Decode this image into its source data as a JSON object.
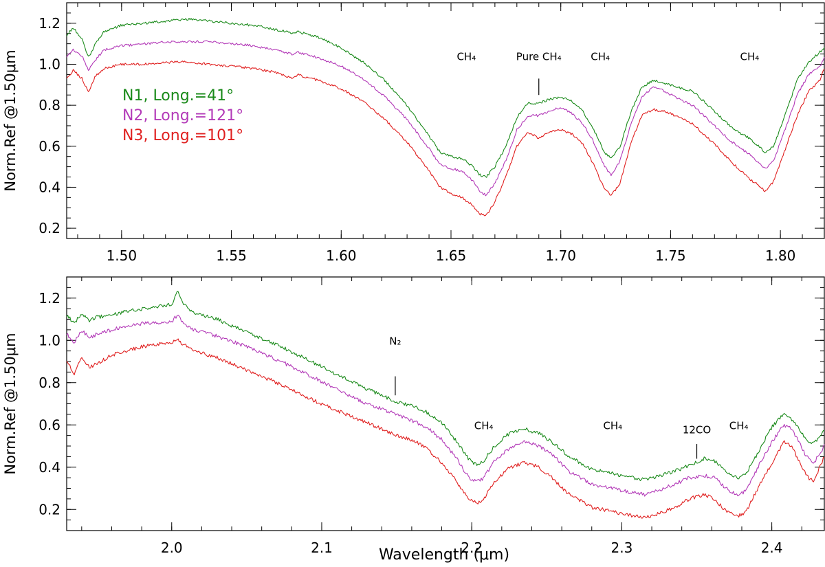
{
  "chart_data": [
    {
      "type": "line",
      "ylabel": "Norm.Ref @1.50μm",
      "xlim": [
        1.475,
        1.82
      ],
      "ylim": [
        0.15,
        1.3
      ],
      "xticks": [
        1.5,
        1.55,
        1.6,
        1.65,
        1.7,
        1.75,
        1.8
      ],
      "xtick_labels": [
        "1.50",
        "1.55",
        "1.60",
        "1.65",
        "1.70",
        "1.75",
        "1.80"
      ],
      "yticks": [
        0.2,
        0.4,
        0.6,
        0.8,
        1.0,
        1.2
      ],
      "ytick_labels": [
        "0.2",
        "0.4",
        "0.6",
        "0.8",
        "1.0",
        "1.2"
      ],
      "legend": [
        {
          "label": "N1, Long.=41°",
          "color": "#1a8a1a"
        },
        {
          "label": "N2, Long.=121°",
          "color": "#b33ab8"
        },
        {
          "label": "N3, Long.=101°",
          "color": "#e02020"
        }
      ],
      "annotations": [
        {
          "x": 1.657,
          "y": 1.02,
          "text": "CH₄"
        },
        {
          "x": 1.69,
          "y": 1.02,
          "text": "Pure CH₄",
          "marker_y": [
            0.85,
            0.93
          ]
        },
        {
          "x": 1.718,
          "y": 1.02,
          "text": "CH₄"
        },
        {
          "x": 1.786,
          "y": 1.02,
          "text": "CH₄"
        }
      ],
      "series": [
        {
          "name": "N1, Long.=41°",
          "color": "#1a8a1a",
          "x": [
            1.475,
            1.478,
            1.482,
            1.485,
            1.488,
            1.492,
            1.5,
            1.51,
            1.52,
            1.53,
            1.54,
            1.55,
            1.56,
            1.57,
            1.578,
            1.58,
            1.59,
            1.6,
            1.61,
            1.62,
            1.63,
            1.64,
            1.645,
            1.65,
            1.655,
            1.66,
            1.663,
            1.666,
            1.67,
            1.675,
            1.68,
            1.685,
            1.69,
            1.695,
            1.7,
            1.705,
            1.71,
            1.715,
            1.72,
            1.723,
            1.727,
            1.732,
            1.737,
            1.742,
            1.747,
            1.752,
            1.76,
            1.77,
            1.778,
            1.782,
            1.786,
            1.79,
            1.793,
            1.797,
            1.802,
            1.808,
            1.813,
            1.818,
            1.82
          ],
          "y": [
            1.14,
            1.18,
            1.12,
            1.03,
            1.1,
            1.16,
            1.19,
            1.2,
            1.21,
            1.22,
            1.21,
            1.2,
            1.19,
            1.17,
            1.15,
            1.16,
            1.13,
            1.08,
            1.01,
            0.92,
            0.8,
            0.65,
            0.57,
            0.55,
            0.54,
            0.5,
            0.46,
            0.45,
            0.5,
            0.6,
            0.74,
            0.81,
            0.81,
            0.83,
            0.84,
            0.82,
            0.77,
            0.68,
            0.57,
            0.54,
            0.6,
            0.77,
            0.89,
            0.92,
            0.91,
            0.89,
            0.87,
            0.77,
            0.69,
            0.66,
            0.64,
            0.6,
            0.57,
            0.6,
            0.75,
            0.93,
            1.01,
            1.06,
            1.08
          ]
        },
        {
          "name": "N2, Long.=121°",
          "color": "#b33ab8",
          "x": [
            1.475,
            1.478,
            1.482,
            1.485,
            1.488,
            1.492,
            1.5,
            1.51,
            1.52,
            1.53,
            1.54,
            1.55,
            1.56,
            1.57,
            1.578,
            1.58,
            1.59,
            1.6,
            1.61,
            1.62,
            1.63,
            1.64,
            1.645,
            1.65,
            1.655,
            1.66,
            1.663,
            1.666,
            1.67,
            1.675,
            1.68,
            1.685,
            1.69,
            1.695,
            1.7,
            1.705,
            1.71,
            1.715,
            1.72,
            1.723,
            1.727,
            1.732,
            1.737,
            1.742,
            1.747,
            1.752,
            1.76,
            1.77,
            1.778,
            1.782,
            1.786,
            1.79,
            1.793,
            1.797,
            1.802,
            1.808,
            1.813,
            1.818,
            1.82
          ],
          "y": [
            1.04,
            1.07,
            1.04,
            0.97,
            1.02,
            1.07,
            1.09,
            1.1,
            1.11,
            1.11,
            1.11,
            1.1,
            1.09,
            1.07,
            1.05,
            1.06,
            1.03,
            0.99,
            0.93,
            0.84,
            0.73,
            0.59,
            0.51,
            0.49,
            0.48,
            0.43,
            0.38,
            0.36,
            0.42,
            0.53,
            0.68,
            0.75,
            0.75,
            0.77,
            0.79,
            0.76,
            0.71,
            0.62,
            0.5,
            0.46,
            0.53,
            0.71,
            0.84,
            0.89,
            0.87,
            0.84,
            0.8,
            0.7,
            0.62,
            0.59,
            0.56,
            0.52,
            0.49,
            0.53,
            0.68,
            0.86,
            0.95,
            0.99,
            1.03
          ]
        },
        {
          "name": "N3, Long.=101°",
          "color": "#e02020",
          "x": [
            1.475,
            1.478,
            1.482,
            1.485,
            1.488,
            1.492,
            1.5,
            1.51,
            1.52,
            1.53,
            1.54,
            1.55,
            1.56,
            1.57,
            1.578,
            1.58,
            1.59,
            1.6,
            1.61,
            1.62,
            1.63,
            1.64,
            1.645,
            1.65,
            1.655,
            1.66,
            1.663,
            1.666,
            1.67,
            1.675,
            1.68,
            1.685,
            1.69,
            1.695,
            1.7,
            1.705,
            1.71,
            1.715,
            1.72,
            1.723,
            1.727,
            1.732,
            1.737,
            1.742,
            1.747,
            1.752,
            1.76,
            1.77,
            1.778,
            1.782,
            1.786,
            1.79,
            1.793,
            1.797,
            1.802,
            1.808,
            1.813,
            1.818,
            1.82
          ],
          "y": [
            0.93,
            0.97,
            0.93,
            0.86,
            0.94,
            0.98,
            1.0,
            1.0,
            1.01,
            1.01,
            1.0,
            0.99,
            0.98,
            0.96,
            0.93,
            0.95,
            0.92,
            0.88,
            0.82,
            0.73,
            0.62,
            0.48,
            0.4,
            0.37,
            0.35,
            0.31,
            0.27,
            0.26,
            0.33,
            0.45,
            0.6,
            0.67,
            0.64,
            0.67,
            0.68,
            0.66,
            0.61,
            0.51,
            0.39,
            0.36,
            0.42,
            0.62,
            0.75,
            0.78,
            0.77,
            0.75,
            0.71,
            0.61,
            0.52,
            0.48,
            0.44,
            0.41,
            0.38,
            0.43,
            0.58,
            0.76,
            0.87,
            0.92,
            0.98
          ]
        }
      ]
    },
    {
      "type": "line",
      "xlabel": "Wavelength (μm)",
      "ylabel": "Norm.Ref @1.50μm",
      "xlim": [
        1.93,
        2.435
      ],
      "ylim": [
        0.1,
        1.3
      ],
      "xticks": [
        2.0,
        2.1,
        2.2,
        2.3,
        2.4
      ],
      "xtick_labels": [
        "2.0",
        "2.1",
        "2.2",
        "2.3",
        "2.4"
      ],
      "yticks": [
        0.2,
        0.4,
        0.6,
        0.8,
        1.0,
        1.2
      ],
      "ytick_labels": [
        "0.2",
        "0.4",
        "0.6",
        "0.8",
        "1.0",
        "1.2"
      ],
      "annotations": [
        {
          "x": 2.149,
          "y": 0.98,
          "text": "N₂",
          "marker_y": [
            0.74,
            0.83
          ]
        },
        {
          "x": 2.208,
          "y": 0.58,
          "text": "CH₄"
        },
        {
          "x": 2.294,
          "y": 0.58,
          "text": "CH₄"
        },
        {
          "x": 2.35,
          "y": 0.56,
          "text": "12CO",
          "marker_y": [
            0.44,
            0.51
          ]
        },
        {
          "x": 2.378,
          "y": 0.58,
          "text": "CH₄"
        }
      ],
      "series": [
        {
          "name": "N1, Long.=41°",
          "color": "#1a8a1a",
          "x": [
            1.93,
            1.935,
            1.94,
            1.945,
            1.95,
            1.96,
            1.97,
            1.98,
            1.99,
            2.0,
            2.004,
            2.008,
            2.015,
            2.03,
            2.05,
            2.07,
            2.09,
            2.11,
            2.13,
            2.15,
            2.16,
            2.17,
            2.18,
            2.19,
            2.198,
            2.203,
            2.208,
            2.215,
            2.225,
            2.235,
            2.245,
            2.255,
            2.265,
            2.28,
            2.3,
            2.315,
            2.325,
            2.335,
            2.345,
            2.355,
            2.362,
            2.368,
            2.373,
            2.378,
            2.383,
            2.39,
            2.4,
            2.408,
            2.413,
            2.418,
            2.423,
            2.428,
            2.435
          ],
          "y": [
            1.12,
            1.08,
            1.13,
            1.09,
            1.11,
            1.12,
            1.14,
            1.15,
            1.16,
            1.17,
            1.23,
            1.17,
            1.13,
            1.1,
            1.04,
            0.98,
            0.91,
            0.84,
            0.77,
            0.71,
            0.69,
            0.66,
            0.61,
            0.52,
            0.44,
            0.41,
            0.43,
            0.5,
            0.56,
            0.58,
            0.56,
            0.51,
            0.45,
            0.39,
            0.36,
            0.34,
            0.36,
            0.38,
            0.41,
            0.44,
            0.43,
            0.39,
            0.36,
            0.35,
            0.37,
            0.46,
            0.59,
            0.65,
            0.63,
            0.58,
            0.53,
            0.51,
            0.58
          ]
        },
        {
          "name": "N2, Long.=121°",
          "color": "#b33ab8",
          "x": [
            1.93,
            1.935,
            1.94,
            1.945,
            1.95,
            1.96,
            1.97,
            1.98,
            1.99,
            2.0,
            2.004,
            2.008,
            2.015,
            2.03,
            2.05,
            2.07,
            2.09,
            2.11,
            2.13,
            2.15,
            2.16,
            2.17,
            2.18,
            2.19,
            2.198,
            2.203,
            2.208,
            2.215,
            2.225,
            2.235,
            2.245,
            2.255,
            2.265,
            2.28,
            2.3,
            2.315,
            2.325,
            2.335,
            2.345,
            2.355,
            2.362,
            2.368,
            2.373,
            2.378,
            2.383,
            2.39,
            2.4,
            2.408,
            2.413,
            2.418,
            2.423,
            2.428,
            2.435
          ],
          "y": [
            1.03,
            0.99,
            1.05,
            1.01,
            1.03,
            1.05,
            1.07,
            1.08,
            1.08,
            1.09,
            1.12,
            1.08,
            1.05,
            1.02,
            0.97,
            0.91,
            0.84,
            0.77,
            0.7,
            0.65,
            0.62,
            0.59,
            0.53,
            0.44,
            0.35,
            0.33,
            0.35,
            0.43,
            0.49,
            0.52,
            0.5,
            0.45,
            0.38,
            0.32,
            0.29,
            0.27,
            0.29,
            0.32,
            0.35,
            0.36,
            0.35,
            0.31,
            0.28,
            0.27,
            0.29,
            0.39,
            0.52,
            0.6,
            0.58,
            0.52,
            0.45,
            0.42,
            0.5
          ]
        },
        {
          "name": "N3, Long.=101°",
          "color": "#e02020",
          "x": [
            1.93,
            1.935,
            1.94,
            1.945,
            1.95,
            1.96,
            1.97,
            1.98,
            1.99,
            2.0,
            2.004,
            2.008,
            2.015,
            2.03,
            2.05,
            2.07,
            2.09,
            2.11,
            2.13,
            2.15,
            2.16,
            2.17,
            2.18,
            2.19,
            2.198,
            2.203,
            2.208,
            2.215,
            2.225,
            2.235,
            2.245,
            2.255,
            2.265,
            2.28,
            2.3,
            2.315,
            2.325,
            2.335,
            2.345,
            2.355,
            2.362,
            2.368,
            2.373,
            2.378,
            2.383,
            2.39,
            2.4,
            2.408,
            2.413,
            2.418,
            2.423,
            2.428,
            2.435
          ],
          "y": [
            0.9,
            0.84,
            0.92,
            0.87,
            0.89,
            0.93,
            0.95,
            0.97,
            0.98,
            0.99,
            1.0,
            0.98,
            0.95,
            0.92,
            0.86,
            0.8,
            0.73,
            0.67,
            0.61,
            0.55,
            0.53,
            0.49,
            0.42,
            0.33,
            0.25,
            0.23,
            0.25,
            0.33,
            0.4,
            0.42,
            0.4,
            0.34,
            0.27,
            0.21,
            0.18,
            0.16,
            0.18,
            0.21,
            0.25,
            0.27,
            0.25,
            0.2,
            0.18,
            0.17,
            0.19,
            0.29,
            0.42,
            0.52,
            0.5,
            0.43,
            0.36,
            0.33,
            0.45
          ]
        }
      ]
    }
  ]
}
